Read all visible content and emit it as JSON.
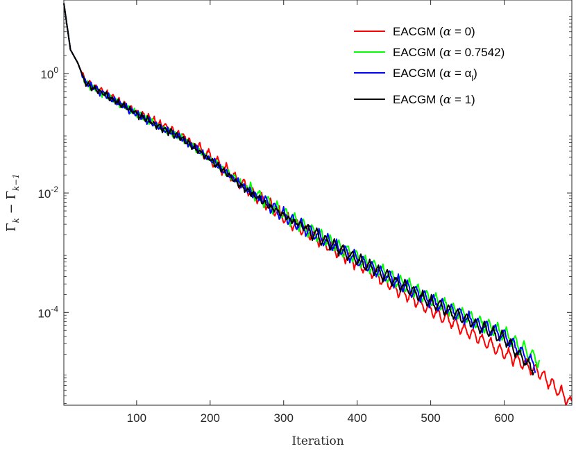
{
  "chart_data": {
    "type": "line",
    "title": "",
    "xlabel": "Iteration",
    "ylabel": "Γ_k − Γ_{k−1}",
    "ylabel_main": "Γ",
    "ylabel_sub1": "k",
    "ylabel_minus": "−",
    "ylabel_sub2": "k−1",
    "yscale": "log",
    "xlim": [
      1,
      692
    ],
    "ylim": [
      2.8e-06,
      17
    ],
    "xticks": [
      100,
      200,
      300,
      400,
      500,
      600
    ],
    "xtick_labels": [
      "100",
      "200",
      "300",
      "400",
      "500",
      "600"
    ],
    "yticks": [
      1,
      0.01,
      0.0001
    ],
    "ytick_labels": [
      {
        "base": "10",
        "exp": "0"
      },
      {
        "base": "10",
        "exp": "-2"
      },
      {
        "base": "10",
        "exp": "-4"
      }
    ],
    "grid": false,
    "legend_position": "top-right",
    "series": [
      {
        "name": "EACGM (α = 0)",
        "label_prefix": "EACGM (",
        "label_alpha": "α",
        "label_suffix": " = 0)",
        "color": "#ff0000",
        "seed": 11,
        "osc_period": 12,
        "osc_amp": 0.22,
        "osc_start": 180,
        "points": [
          [
            1,
            15
          ],
          [
            10,
            2.5
          ],
          [
            20,
            1.5
          ],
          [
            30,
            0.75
          ],
          [
            60,
            0.45
          ],
          [
            100,
            0.23
          ],
          [
            130,
            0.15
          ],
          [
            160,
            0.095
          ],
          [
            200,
            0.04
          ],
          [
            250,
            0.012
          ],
          [
            300,
            0.004
          ],
          [
            350,
            0.0016
          ],
          [
            400,
            0.00066
          ],
          [
            450,
            0.00027
          ],
          [
            500,
            0.00011
          ],
          [
            550,
            4.8e-05
          ],
          [
            600,
            2.1e-05
          ],
          [
            650,
            9.5e-06
          ],
          [
            692,
            3e-06
          ]
        ]
      },
      {
        "name": "EACGM (α = 0.7542)",
        "label_prefix": "EACGM (",
        "label_alpha": "α",
        "label_suffix": " = 0.7542)",
        "color": "#00ff00",
        "seed": 23,
        "osc_period": 12,
        "osc_amp": 0.24,
        "osc_start": 250,
        "points": [
          [
            1,
            15
          ],
          [
            10,
            2.5
          ],
          [
            20,
            1.5
          ],
          [
            30,
            0.7
          ],
          [
            60,
            0.42
          ],
          [
            100,
            0.21
          ],
          [
            130,
            0.13
          ],
          [
            160,
            0.085
          ],
          [
            200,
            0.038
          ],
          [
            250,
            0.012
          ],
          [
            300,
            0.0045
          ],
          [
            350,
            0.0019
          ],
          [
            400,
            0.00082
          ],
          [
            450,
            0.00037
          ],
          [
            500,
            0.00017
          ],
          [
            550,
            8.5e-05
          ],
          [
            600,
            4.4e-05
          ],
          [
            648,
            1.5e-05
          ]
        ]
      },
      {
        "name": "EACGM (α = α_l)",
        "label_prefix": "EACGM (",
        "label_alpha": "α",
        "label_suffix": " =  α",
        "label_sub": "l",
        "label_close": ")",
        "color": "#0000ff",
        "seed": 37,
        "osc_period": 12,
        "osc_amp": 0.22,
        "osc_start": 270,
        "points": [
          [
            1,
            15
          ],
          [
            10,
            2.5
          ],
          [
            20,
            1.5
          ],
          [
            30,
            0.7
          ],
          [
            60,
            0.42
          ],
          [
            100,
            0.21
          ],
          [
            130,
            0.13
          ],
          [
            160,
            0.085
          ],
          [
            200,
            0.037
          ],
          [
            250,
            0.0115
          ],
          [
            300,
            0.0043
          ],
          [
            350,
            0.0018
          ],
          [
            400,
            0.00078
          ],
          [
            450,
            0.00035
          ],
          [
            500,
            0.00016
          ],
          [
            550,
            8e-05
          ],
          [
            600,
            4e-05
          ],
          [
            643,
            1.3e-05
          ]
        ]
      },
      {
        "name": "EACGM (α = 1)",
        "label_prefix": "EACGM (",
        "label_alpha": "α",
        "label_suffix": " = 1)",
        "color": "#000000",
        "seed": 53,
        "osc_period": 12,
        "osc_amp": 0.2,
        "osc_start": 330,
        "points": [
          [
            1,
            15
          ],
          [
            10,
            2.5
          ],
          [
            20,
            1.5
          ],
          [
            30,
            0.7
          ],
          [
            60,
            0.42
          ],
          [
            100,
            0.21
          ],
          [
            130,
            0.13
          ],
          [
            160,
            0.085
          ],
          [
            200,
            0.036
          ],
          [
            250,
            0.011
          ],
          [
            300,
            0.0042
          ],
          [
            350,
            0.0018
          ],
          [
            400,
            0.00076
          ],
          [
            450,
            0.00034
          ],
          [
            500,
            0.00015
          ],
          [
            550,
            7.5e-05
          ],
          [
            600,
            3.6e-05
          ],
          [
            640,
            1.1e-05
          ]
        ]
      }
    ]
  }
}
